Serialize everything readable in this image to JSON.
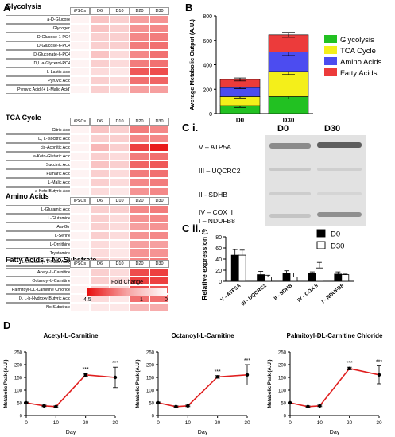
{
  "panel_letters": {
    "a": "A",
    "b": "B",
    "ci": "C i.",
    "cii": "C ii.",
    "d": "D"
  },
  "heatmap": {
    "columns": [
      "iPSCs",
      "D6",
      "D10",
      "D20",
      "D30"
    ],
    "legend_title": "Fold Change",
    "legend_ticks": [
      "4.5",
      "1",
      "0"
    ],
    "blocks": [
      {
        "title": "Glycolysis",
        "rows": [
          {
            "label": "a-D-Glucose",
            "values": [
              0.05,
              0.25,
              0.2,
              0.4,
              0.45
            ]
          },
          {
            "label": "Glycogen",
            "values": [
              0.05,
              0.25,
              0.2,
              0.45,
              0.5
            ]
          },
          {
            "label": "D-Glucose-1-PO4",
            "values": [
              0.05,
              0.2,
              0.2,
              0.5,
              0.55
            ]
          },
          {
            "label": "D-Glucose-6-PO4",
            "values": [
              0.05,
              0.2,
              0.2,
              0.55,
              0.6
            ]
          },
          {
            "label": "D-Gluconate-6-PO4",
            "values": [
              0.05,
              0.25,
              0.15,
              0.5,
              0.6
            ]
          },
          {
            "label": "D,L-a-Glycerol-PO4",
            "values": [
              0.05,
              0.2,
              0.15,
              0.55,
              0.6
            ]
          },
          {
            "label": "L-Lactic Acid",
            "values": [
              0.05,
              0.15,
              0.1,
              0.7,
              0.75
            ]
          },
          {
            "label": "Pyruvic Acid",
            "values": [
              0.05,
              0.2,
              0.15,
              0.6,
              0.65
            ]
          },
          {
            "label": "Pyruvic Acid (+ L-Malic Acid)",
            "values": [
              0.05,
              0.2,
              0.15,
              0.4,
              0.4
            ]
          }
        ]
      },
      {
        "title": "TCA Cycle",
        "rows": [
          {
            "label": "Citric Acid",
            "values": [
              0.05,
              0.25,
              0.2,
              0.55,
              0.5
            ]
          },
          {
            "label": "D, L-Isocitric Acid",
            "values": [
              0.05,
              0.2,
              0.2,
              0.5,
              0.5
            ]
          },
          {
            "label": "cis-Aconitic Acid",
            "values": [
              0.05,
              0.3,
              0.2,
              0.8,
              0.95
            ]
          },
          {
            "label": "a-Keto-Glutaric Acid",
            "values": [
              0.05,
              0.2,
              0.15,
              0.55,
              0.6
            ]
          },
          {
            "label": "Succinic Acid",
            "values": [
              0.05,
              0.25,
              0.2,
              0.65,
              0.7
            ]
          },
          {
            "label": "Fumaric Acid",
            "values": [
              0.05,
              0.2,
              0.15,
              0.55,
              0.6
            ]
          },
          {
            "label": "L-Malic Acid",
            "values": [
              0.05,
              0.2,
              0.15,
              0.5,
              0.55
            ]
          },
          {
            "label": "a-Keto-Butyric Acid",
            "values": [
              0.05,
              0.15,
              0.1,
              0.45,
              0.5
            ]
          }
        ]
      },
      {
        "title": "Amino Acids",
        "rows": [
          {
            "label": "L-Glutamic Acid",
            "values": [
              0.05,
              0.2,
              0.2,
              0.5,
              0.55
            ]
          },
          {
            "label": "L-Glutamine",
            "values": [
              0.05,
              0.2,
              0.15,
              0.45,
              0.5
            ]
          },
          {
            "label": "Ala-Gln",
            "values": [
              0.05,
              0.2,
              0.15,
              0.4,
              0.45
            ]
          },
          {
            "label": "L-Serine",
            "values": [
              0.05,
              0.2,
              0.15,
              0.45,
              0.5
            ]
          },
          {
            "label": "L-Ornithine",
            "values": [
              0.05,
              0.15,
              0.1,
              0.4,
              0.4
            ]
          },
          {
            "label": "Tryptamine",
            "values": [
              0.05,
              0.15,
              0.1,
              0.45,
              0.45
            ]
          },
          {
            "label": "L-Leucine (+ L-Malic Acid)",
            "values": [
              0.05,
              0.2,
              0.15,
              0.5,
              0.55
            ]
          },
          {
            "label": "g-Amino-Butyric Acid",
            "values": [
              0.05,
              0.15,
              0.1,
              0.4,
              0.45
            ]
          },
          {
            "label": "a-Keto-Isocaproic Acid",
            "values": [
              0.05,
              0.15,
              0.1,
              0.35,
              0.4
            ]
          }
        ]
      },
      {
        "title": "Fatty Acids + No Substrate",
        "rows": [
          {
            "label": "Acetyl-L-Carnitine",
            "values": [
              0.05,
              0.2,
              0.15,
              0.75,
              0.8
            ]
          },
          {
            "label": "Octanoyl-L-Carnitine",
            "values": [
              0.05,
              0.2,
              0.15,
              0.8,
              0.8
            ]
          },
          {
            "label": "Palmitoyl-DL-Carnitine Chloride",
            "values": [
              0.05,
              0.2,
              0.15,
              0.75,
              0.7
            ]
          },
          {
            "label": "D, L-b-Hydroxy-Butyric Acid",
            "values": [
              0.05,
              0.15,
              0.1,
              0.6,
              0.6
            ]
          },
          {
            "label": "No Substrate",
            "values": [
              0.05,
              0.1,
              0.1,
              0.3,
              0.35
            ]
          }
        ]
      }
    ]
  },
  "chart_data": [
    {
      "panel": "B",
      "type": "bar",
      "stacked": true,
      "categories": [
        "D0",
        "D30"
      ],
      "ylabel": "Average Metabolic Output (A.U.)",
      "ylim": [
        0,
        800
      ],
      "yticks": [
        "0",
        "200",
        "400",
        "600",
        "800"
      ],
      "series": [
        {
          "name": "Glycolysis",
          "color": "#22c122",
          "values": [
            65,
            140
          ],
          "err": [
            15,
            20
          ]
        },
        {
          "name": "TCA Cycle",
          "color": "#f4ef1a",
          "values": [
            75,
            205
          ],
          "err": [
            12,
            25
          ]
        },
        {
          "name": "Amino Acids",
          "color": "#4c4cf0",
          "values": [
            75,
            160
          ],
          "err": [
            10,
            30
          ]
        },
        {
          "name": "Fatty Acids",
          "color": "#ec3b3b",
          "values": [
            65,
            140
          ],
          "err": [
            12,
            20
          ]
        }
      ],
      "legend_position": "right"
    },
    {
      "panel": "C ii.",
      "type": "bar",
      "categories": [
        "V - ATP5A",
        "III - UQCRC2",
        "II - SDHB",
        "IV - COX II",
        "I - NDUFB8"
      ],
      "ylabel": "Relative expression (%)",
      "ylim": [
        0,
        80
      ],
      "yticks": [
        "0",
        "20",
        "40",
        "60",
        "80"
      ],
      "series": [
        {
          "name": "D0",
          "color": "#000000",
          "values": [
            47,
            12,
            15,
            14,
            13
          ],
          "err": [
            10,
            6,
            4,
            3,
            4
          ]
        },
        {
          "name": "D30",
          "color": "#ffffff",
          "values": [
            47,
            8,
            8,
            24,
            12
          ],
          "err": [
            9,
            3,
            7,
            10,
            1
          ]
        }
      ],
      "legend_position": "top-right"
    },
    {
      "panel": "D",
      "type": "line",
      "title": "Acetyl-L-Carnitine",
      "xlabel": "Day",
      "ylabel": "Metabolic Peak (A.U.)",
      "x": [
        0,
        6,
        10,
        20,
        30
      ],
      "y": [
        50,
        38,
        35,
        160,
        150
      ],
      "err": [
        3,
        3,
        3,
        5,
        40
      ],
      "ylim": [
        0,
        250
      ],
      "xlim": [
        0,
        30
      ],
      "yticks": [
        "0",
        "50",
        "100",
        "150",
        "200",
        "250"
      ],
      "xticks": [
        "0",
        "10",
        "20",
        "30"
      ],
      "annotations": [
        "***",
        "***"
      ]
    },
    {
      "panel": "D",
      "type": "line",
      "title": "Octanoyl-L-Carnitine",
      "xlabel": "Day",
      "ylabel": "Metabolic Peak (A.U.)",
      "x": [
        0,
        6,
        10,
        20,
        30
      ],
      "y": [
        50,
        35,
        38,
        152,
        160
      ],
      "err": [
        3,
        3,
        3,
        5,
        40
      ],
      "ylim": [
        0,
        250
      ],
      "xlim": [
        0,
        30
      ],
      "yticks": [
        "0",
        "50",
        "100",
        "150",
        "200",
        "250"
      ],
      "xticks": [
        "0",
        "10",
        "20",
        "30"
      ],
      "annotations": [
        "***",
        "***"
      ]
    },
    {
      "panel": "D",
      "type": "line",
      "title": "Palmitoyl-DL-Carnitine Chloride",
      "xlabel": "Day",
      "ylabel": "Metabolic Peak (A.U.)",
      "x": [
        0,
        6,
        10,
        20,
        30
      ],
      "y": [
        50,
        35,
        38,
        185,
        160
      ],
      "err": [
        3,
        3,
        3,
        5,
        35
      ],
      "ylim": [
        0,
        250
      ],
      "xlim": [
        0,
        30
      ],
      "yticks": [
        "0",
        "50",
        "100",
        "150",
        "200",
        "250"
      ],
      "xticks": [
        "0",
        "10",
        "20",
        "30"
      ],
      "annotations": [
        "***",
        "***"
      ]
    }
  ],
  "blot": {
    "columns": [
      "D0",
      "D30"
    ],
    "labels": [
      "V – ATP5A",
      "III – UQCRC2",
      "II - SDHB",
      "IV – COX II",
      "I – NDUFB8"
    ]
  }
}
